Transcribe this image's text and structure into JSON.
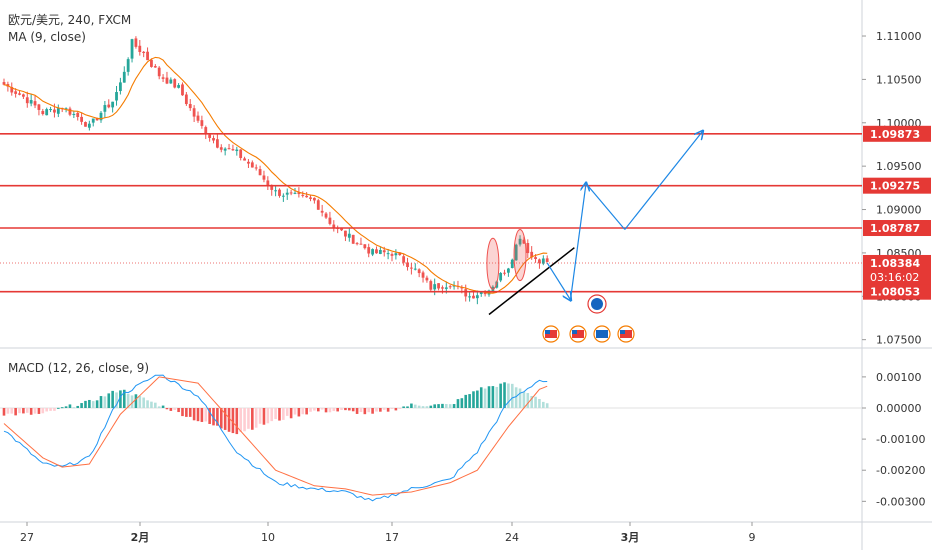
{
  "header": {
    "symbol_line": "欧元/美元, 240, FXCM",
    "ma_label": "MA (9, close)",
    "macd_label": "MACD (12, 26, close, 9)"
  },
  "colors": {
    "bull": "#26a69a",
    "bear": "#ef5350",
    "ma": "#f57c00",
    "macd_line": "#2196f3",
    "signal_line": "#ff7043",
    "level": "#e53935",
    "projection": "#1e88e5",
    "trendline": "#000000",
    "price_tag": "#e53935"
  },
  "chart_data": [
    {
      "type": "candlestick",
      "title": "",
      "ylim": [
        1.0745,
        1.113
      ],
      "y_ticks": [
        "1.11000",
        "1.10500",
        "1.10000",
        "1.09500",
        "1.09000",
        "1.08500",
        "1.08000",
        "1.07500"
      ],
      "x_ticks": [
        "27",
        "2月",
        "10",
        "17",
        "24",
        "3月",
        "9"
      ],
      "horizontal_levels": [
        1.09873,
        1.09275,
        1.08787,
        1.08053
      ],
      "level_labels": [
        "1.09873",
        "1.09275",
        "1.08787",
        "1.08053"
      ],
      "current_price": 1.08384,
      "current_price_label": "1.08384",
      "countdown": "03:16:02",
      "anchors": [
        [
          0,
          1.1044
        ],
        [
          5,
          1.103
        ],
        [
          10,
          1.1012
        ],
        [
          15,
          1.1018
        ],
        [
          20,
          1.1004
        ],
        [
          22,
          1.0995
        ],
        [
          25,
          1.1012
        ],
        [
          28,
          1.1025
        ],
        [
          30,
          1.1045
        ],
        [
          33,
          1.1092
        ],
        [
          36,
          1.108
        ],
        [
          40,
          1.1055
        ],
        [
          45,
          1.104
        ],
        [
          50,
          1.1
        ],
        [
          55,
          1.0975
        ],
        [
          60,
          1.0965
        ],
        [
          65,
          1.0945
        ],
        [
          70,
          1.092
        ],
        [
          75,
          1.0915
        ],
        [
          80,
          1.091
        ],
        [
          85,
          1.088
        ],
        [
          90,
          1.0865
        ],
        [
          95,
          1.085
        ],
        [
          100,
          1.085
        ],
        [
          105,
          1.0835
        ],
        [
          110,
          1.081
        ],
        [
          115,
          1.0815
        ],
        [
          120,
          1.08
        ],
        [
          125,
          1.0808
        ],
        [
          130,
          1.0835
        ],
        [
          133,
          1.087
        ],
        [
          136,
          1.0845
        ],
        [
          140,
          1.084
        ]
      ],
      "ma_series_name": "MA (9, close)",
      "projection_path": [
        [
          1.08384,
          140
        ],
        [
          1.0796,
          146
        ],
        [
          1.093,
          150
        ],
        [
          1.0877,
          160
        ],
        [
          1.099,
          180
        ]
      ],
      "trendline": [
        [
          125,
          1.0779
        ],
        [
          147,
          1.0856
        ]
      ],
      "highlight_ellipses": [
        [
          126,
          1.0815,
          1.086
        ],
        [
          133,
          1.0825,
          1.087
        ]
      ]
    },
    {
      "type": "macd",
      "title": "",
      "ylim": [
        -0.0036,
        0.0018
      ],
      "y_ticks": [
        "0.00100",
        "0.00000",
        "-0.00100",
        "-0.00200",
        "-0.00300"
      ],
      "series": [
        {
          "name": "MACD",
          "anchors": [
            [
              0,
              -0.0007
            ],
            [
              10,
              -0.0018
            ],
            [
              15,
              -0.0019
            ],
            [
              22,
              -0.0016
            ],
            [
              30,
              0.0004
            ],
            [
              40,
              0.0011
            ],
            [
              50,
              0.0004
            ],
            [
              60,
              -0.0014
            ],
            [
              70,
              -0.0024
            ],
            [
              80,
              -0.0026
            ],
            [
              88,
              -0.0027
            ],
            [
              95,
              -0.003
            ],
            [
              105,
              -0.0026
            ],
            [
              115,
              -0.0023
            ],
            [
              122,
              -0.0014
            ],
            [
              130,
              0.0002
            ],
            [
              138,
              0.0009
            ],
            [
              140,
              0.0008
            ]
          ]
        },
        {
          "name": "Signal",
          "anchors": [
            [
              0,
              -0.0005
            ],
            [
              10,
              -0.0016
            ],
            [
              15,
              -0.0019
            ],
            [
              22,
              -0.0018
            ],
            [
              30,
              -0.0002
            ],
            [
              40,
              0.001
            ],
            [
              50,
              0.0008
            ],
            [
              60,
              -0.0006
            ],
            [
              70,
              -0.002
            ],
            [
              80,
              -0.0025
            ],
            [
              88,
              -0.0026
            ],
            [
              95,
              -0.0028
            ],
            [
              105,
              -0.0027
            ],
            [
              115,
              -0.0024
            ],
            [
              122,
              -0.002
            ],
            [
              130,
              -0.0006
            ],
            [
              138,
              0.0006
            ],
            [
              140,
              0.0007
            ]
          ]
        }
      ]
    }
  ]
}
